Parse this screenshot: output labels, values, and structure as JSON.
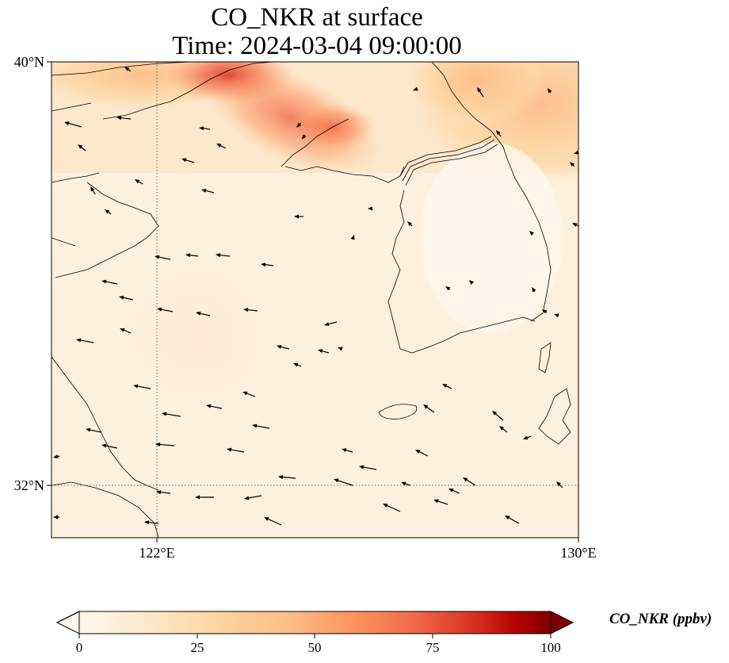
{
  "title": {
    "line1": "CO_NKR at surface",
    "line2": "Time: 2024-03-04 09:00:00"
  },
  "axes": {
    "lat_labels": [
      "40°N",
      "32°N"
    ],
    "lon_labels": [
      "122°E",
      "130°E"
    ]
  },
  "colorbar": {
    "label": "CO_NKR (ppbv)",
    "ticks": [
      "0",
      "25",
      "50",
      "75",
      "100"
    ],
    "range": [
      0,
      100
    ],
    "extend": "both",
    "colormap": "OrRd",
    "colors": [
      "#fff7ec",
      "#fee8c8",
      "#fdd49e",
      "#fdbb84",
      "#fc8d59",
      "#ef6548",
      "#d7301f",
      "#b30000",
      "#7f0000"
    ]
  },
  "chart_data": {
    "type": "heatmap",
    "title": "CO_NKR at surface",
    "subtitle": "Time: 2024-03-04 09:00:00",
    "lon_range": [
      120,
      130
    ],
    "lat_range": [
      31,
      40
    ],
    "grid_lines": {
      "lon": [
        122
      ],
      "lat": [
        32
      ],
      "style": "dotted"
    },
    "value_range": [
      0,
      100
    ],
    "overlay": "wind vectors"
  }
}
